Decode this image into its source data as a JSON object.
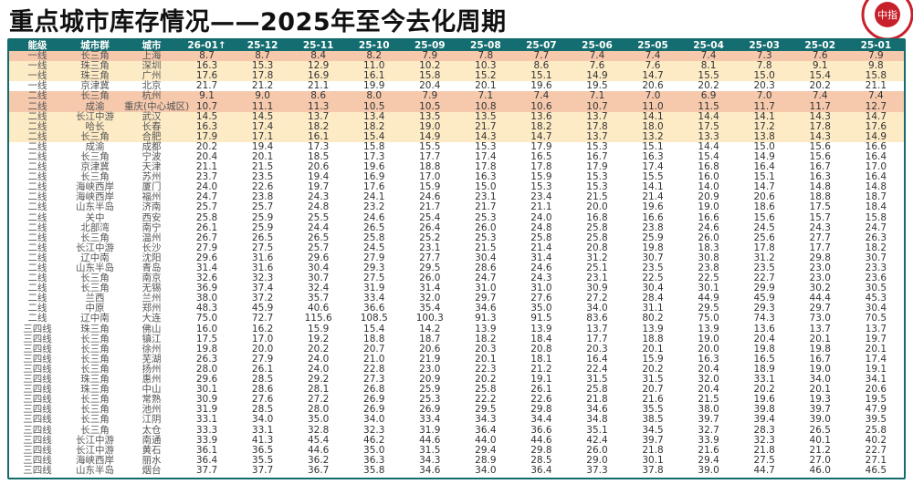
{
  "title": "重点城市库存情况——2025年至今去化周期",
  "logo": {
    "text": "中指",
    "ring_text": "CHINA INDEX",
    "color": "#c8202a"
  },
  "colors": {
    "header": "#146d70",
    "highlight_salmon": "#f6c9ad",
    "highlight_yellow": "#fdebc6"
  },
  "table": {
    "headers": [
      "能级",
      "城市群",
      "城市",
      "26-01↑",
      "25-12",
      "25-11",
      "25-10",
      "25-09",
      "25-08",
      "25-07",
      "25-06",
      "25-05",
      "25-04",
      "25-03",
      "25-02",
      "25-01"
    ],
    "rows": [
      {
        "hl": "salmon",
        "cells": [
          "一线",
          "长三角",
          "上海",
          "8.7",
          "8.7",
          "8.4",
          "8.2",
          "7.9",
          "7.8",
          "7.7",
          "7.4",
          "7.4",
          "7.4",
          "7.3",
          "7.6",
          "7.9"
        ]
      },
      {
        "hl": "yellow",
        "cells": [
          "一线",
          "珠三角",
          "深圳",
          "16.3",
          "15.3",
          "12.9",
          "11.0",
          "10.2",
          "10.3",
          "8.6",
          "7.6",
          "7.6",
          "8.1",
          "7.8",
          "9.1",
          "9.8"
        ]
      },
      {
        "hl": "yellow",
        "cells": [
          "一线",
          "珠三角",
          "广州",
          "17.6",
          "17.8",
          "16.9",
          "16.1",
          "15.8",
          "15.2",
          "15.1",
          "14.9",
          "14.7",
          "15.5",
          "15.0",
          "15.4",
          "15.8"
        ]
      },
      {
        "hl": "white",
        "cells": [
          "一线",
          "京津冀",
          "北京",
          "21.7",
          "21.2",
          "21.1",
          "19.9",
          "20.4",
          "20.1",
          "19.6",
          "19.5",
          "20.6",
          "20.2",
          "20.3",
          "20.2",
          "21.1"
        ]
      },
      {
        "hl": "salmon",
        "cells": [
          "二线",
          "长三角",
          "杭州",
          "9.1",
          "9.0",
          "8.6",
          "8.0",
          "7.9",
          "7.1",
          "7.4",
          "7.1",
          "7.0",
          "6.9",
          "7.0",
          "7.4",
          "7.4"
        ]
      },
      {
        "hl": "salmon",
        "cells": [
          "二线",
          "成渝",
          "重庆(中心城区)",
          "10.7",
          "11.1",
          "11.3",
          "10.5",
          "10.5",
          "10.8",
          "10.6",
          "10.7",
          "11.0",
          "11.5",
          "11.7",
          "11.7",
          "12.7"
        ]
      },
      {
        "hl": "yellow",
        "cells": [
          "二线",
          "长江中游",
          "武汉",
          "14.5",
          "14.5",
          "13.7",
          "13.4",
          "13.5",
          "13.5",
          "13.6",
          "13.7",
          "14.1",
          "14.4",
          "14.1",
          "14.3",
          "14.7"
        ]
      },
      {
        "hl": "yellow",
        "cells": [
          "二线",
          "哈长",
          "长春",
          "16.3",
          "17.4",
          "18.2",
          "18.2",
          "19.0",
          "21.7",
          "18.2",
          "17.8",
          "18.0",
          "17.5",
          "17.2",
          "17.8",
          "17.6"
        ]
      },
      {
        "hl": "yellow",
        "cells": [
          "二线",
          "长三角",
          "合肥",
          "17.9",
          "17.1",
          "16.1",
          "15.4",
          "14.9",
          "14.3",
          "14.7",
          "13.7",
          "13.2",
          "13.3",
          "13.8",
          "14.3",
          "14.9"
        ]
      },
      {
        "hl": "white",
        "cells": [
          "二线",
          "成渝",
          "成都",
          "20.2",
          "19.4",
          "17.3",
          "15.8",
          "15.5",
          "15.3",
          "17.9",
          "15.3",
          "15.1",
          "14.4",
          "15.0",
          "15.6",
          "16.6"
        ]
      },
      {
        "hl": "white",
        "cells": [
          "二线",
          "长三角",
          "宁波",
          "20.4",
          "20.1",
          "18.5",
          "17.3",
          "17.7",
          "17.4",
          "16.5",
          "16.7",
          "16.3",
          "15.4",
          "14.9",
          "15.6",
          "16.4"
        ]
      },
      {
        "hl": "white",
        "cells": [
          "二线",
          "京津冀",
          "天津",
          "21.1",
          "21.5",
          "20.6",
          "19.6",
          "18.8",
          "17.8",
          "17.8",
          "17.9",
          "17.4",
          "16.8",
          "16.4",
          "16.7",
          "17.0"
        ]
      },
      {
        "hl": "white",
        "cells": [
          "二线",
          "长三角",
          "苏州",
          "23.7",
          "23.5",
          "19.4",
          "16.9",
          "17.0",
          "16.3",
          "15.9",
          "15.3",
          "15.5",
          "16.0",
          "15.1",
          "16.3",
          "16.4"
        ]
      },
      {
        "hl": "white",
        "cells": [
          "二线",
          "海峡西岸",
          "厦门",
          "24.0",
          "22.6",
          "19.7",
          "17.6",
          "15.9",
          "15.0",
          "15.3",
          "15.3",
          "14.1",
          "14.0",
          "14.7",
          "14.8",
          "14.8"
        ]
      },
      {
        "hl": "white",
        "cells": [
          "二线",
          "海峡西岸",
          "福州",
          "24.7",
          "23.8",
          "24.3",
          "24.1",
          "24.6",
          "23.1",
          "23.4",
          "21.5",
          "21.4",
          "20.9",
          "20.6",
          "18.8",
          "18.7"
        ]
      },
      {
        "hl": "white",
        "cells": [
          "二线",
          "山东半岛",
          "济南",
          "25.7",
          "25.7",
          "24.8",
          "23.2",
          "21.7",
          "21.7",
          "21.1",
          "20.0",
          "19.6",
          "19.0",
          "18.6",
          "17.5",
          "18.4"
        ]
      },
      {
        "hl": "white",
        "cells": [
          "二线",
          "关中",
          "西安",
          "25.8",
          "25.9",
          "25.5",
          "24.6",
          "25.4",
          "25.3",
          "24.0",
          "16.8",
          "16.6",
          "16.6",
          "15.6",
          "15.7",
          "15.8"
        ]
      },
      {
        "hl": "white",
        "cells": [
          "二线",
          "北部湾",
          "南宁",
          "26.1",
          "25.9",
          "24.4",
          "26.5",
          "26.4",
          "26.0",
          "24.8",
          "25.8",
          "23.8",
          "24.6",
          "24.5",
          "24.3",
          "24.7"
        ]
      },
      {
        "hl": "white",
        "cells": [
          "二线",
          "长三角",
          "温州",
          "26.7",
          "26.5",
          "26.5",
          "25.8",
          "25.2",
          "25.3",
          "25.8",
          "25.8",
          "25.9",
          "26.0",
          "25.6",
          "27.7",
          "26.3"
        ]
      },
      {
        "hl": "white",
        "cells": [
          "二线",
          "长江中游",
          "长沙",
          "27.9",
          "27.5",
          "25.7",
          "24.5",
          "23.1",
          "21.5",
          "21.4",
          "20.8",
          "19.8",
          "18.3",
          "17.8",
          "17.7",
          "18.2"
        ]
      },
      {
        "hl": "white",
        "cells": [
          "二线",
          "辽中南",
          "沈阳",
          "29.6",
          "31.6",
          "29.6",
          "27.9",
          "27.7",
          "30.4",
          "31.4",
          "31.2",
          "30.7",
          "30.8",
          "31.2",
          "29.8",
          "30.7"
        ]
      },
      {
        "hl": "white",
        "cells": [
          "二线",
          "山东半岛",
          "青岛",
          "31.4",
          "31.6",
          "30.4",
          "29.3",
          "29.5",
          "28.6",
          "24.6",
          "25.1",
          "23.5",
          "23.8",
          "23.5",
          "23.0",
          "23.3"
        ]
      },
      {
        "hl": "white",
        "cells": [
          "二线",
          "长三角",
          "南京",
          "32.6",
          "32.3",
          "30.7",
          "27.5",
          "26.0",
          "24.7",
          "24.3",
          "23.1",
          "22.5",
          "22.5",
          "22.7",
          "23.0",
          "23.6"
        ]
      },
      {
        "hl": "white",
        "cells": [
          "二线",
          "长三角",
          "无锡",
          "36.9",
          "37.4",
          "32.4",
          "31.9",
          "31.4",
          "31.0",
          "31.0",
          "30.9",
          "30.4",
          "30.1",
          "29.9",
          "30.2",
          "30.5"
        ]
      },
      {
        "hl": "white",
        "cells": [
          "二线",
          "兰西",
          "兰州",
          "38.0",
          "37.2",
          "35.7",
          "33.4",
          "32.0",
          "29.7",
          "27.6",
          "27.2",
          "28.4",
          "44.9",
          "45.9",
          "44.4",
          "45.3"
        ]
      },
      {
        "hl": "white",
        "cells": [
          "二线",
          "中原",
          "郑州",
          "48.3",
          "45.9",
          "40.6",
          "36.6",
          "35.4",
          "34.6",
          "35.0",
          "34.0",
          "31.1",
          "29.5",
          "29.3",
          "29.7",
          "30.4"
        ]
      },
      {
        "hl": "white",
        "cells": [
          "二线",
          "辽中南",
          "大连",
          "75.0",
          "72.7",
          "115.6",
          "108.5",
          "100.3",
          "91.3",
          "91.5",
          "83.6",
          "80.2",
          "75.0",
          "74.3",
          "73.0",
          "70.5"
        ]
      },
      {
        "hl": "white",
        "cells": [
          "三四线",
          "珠三角",
          "佛山",
          "16.0",
          "16.2",
          "15.9",
          "15.4",
          "14.2",
          "13.9",
          "13.9",
          "13.7",
          "13.9",
          "13.9",
          "13.6",
          "13.7",
          "13.7"
        ]
      },
      {
        "hl": "white",
        "cells": [
          "三四线",
          "长三角",
          "镇江",
          "17.5",
          "17.0",
          "19.2",
          "18.8",
          "18.7",
          "18.2",
          "18.4",
          "17.7",
          "18.8",
          "19.0",
          "20.4",
          "20.1",
          "19.7"
        ]
      },
      {
        "hl": "white",
        "cells": [
          "三四线",
          "长三角",
          "徐州",
          "19.8",
          "20.0",
          "20.2",
          "20.7",
          "20.6",
          "20.3",
          "20.8",
          "20.3",
          "20.1",
          "20.0",
          "19.8",
          "19.8",
          "20.1"
        ]
      },
      {
        "hl": "white",
        "cells": [
          "三四线",
          "长三角",
          "芜湖",
          "26.3",
          "27.9",
          "24.0",
          "21.0",
          "21.9",
          "20.1",
          "18.1",
          "16.4",
          "15.9",
          "16.3",
          "16.5",
          "16.7",
          "17.4"
        ]
      },
      {
        "hl": "white",
        "cells": [
          "三四线",
          "长三角",
          "扬州",
          "28.0",
          "26.1",
          "24.0",
          "22.8",
          "23.0",
          "22.3",
          "21.2",
          "22.4",
          "20.2",
          "20.4",
          "18.9",
          "19.0",
          "19.1"
        ]
      },
      {
        "hl": "white",
        "cells": [
          "三四线",
          "珠三角",
          "惠州",
          "29.6",
          "28.5",
          "29.2",
          "27.3",
          "20.9",
          "20.2",
          "19.1",
          "31.5",
          "31.5",
          "32.0",
          "33.1",
          "34.0",
          "34.1"
        ]
      },
      {
        "hl": "white",
        "cells": [
          "三四线",
          "珠三角",
          "中山",
          "30.1",
          "28.6",
          "28.1",
          "26.8",
          "25.9",
          "25.8",
          "26.1",
          "25.8",
          "20.7",
          "20.4",
          "20.2",
          "20.1",
          "20.6"
        ]
      },
      {
        "hl": "white",
        "cells": [
          "三四线",
          "长三角",
          "常熟",
          "30.9",
          "27.6",
          "27.2",
          "26.9",
          "25.3",
          "22.2",
          "22.6",
          "21.8",
          "21.6",
          "21.5",
          "19.6",
          "19.3",
          "19.5"
        ]
      },
      {
        "hl": "white",
        "cells": [
          "三四线",
          "长三角",
          "池州",
          "31.9",
          "28.5",
          "28.0",
          "26.9",
          "26.9",
          "29.5",
          "29.8",
          "34.6",
          "35.5",
          "38.0",
          "39.8",
          "39.7",
          "47.9"
        ]
      },
      {
        "hl": "white",
        "cells": [
          "三四线",
          "长三角",
          "江阴",
          "33.1",
          "34.0",
          "35.0",
          "34.0",
          "33.4",
          "34.3",
          "34.4",
          "34.8",
          "38.5",
          "39.7",
          "39.4",
          "39.0",
          "39.5"
        ]
      },
      {
        "hl": "white",
        "cells": [
          "三四线",
          "长三角",
          "太仓",
          "33.3",
          "33.1",
          "32.8",
          "32.3",
          "31.9",
          "36.4",
          "36.6",
          "35.1",
          "34.5",
          "32.7",
          "28.3",
          "26.5",
          "25.8"
        ]
      },
      {
        "hl": "white",
        "cells": [
          "三四线",
          "长江中游",
          "南通",
          "33.9",
          "41.3",
          "45.4",
          "46.2",
          "44.6",
          "44.0",
          "44.6",
          "42.4",
          "39.7",
          "33.9",
          "32.3",
          "40.1",
          "40.2"
        ]
      },
      {
        "hl": "white",
        "cells": [
          "三四线",
          "长江中游",
          "黄石",
          "36.1",
          "36.5",
          "44.6",
          "35.0",
          "31.5",
          "29.4",
          "29.8",
          "26.0",
          "21.8",
          "21.6",
          "21.8",
          "21.2",
          "22.7"
        ]
      },
      {
        "hl": "white",
        "cells": [
          "三四线",
          "海峡西岸",
          "丽水",
          "36.4",
          "35.5",
          "36.2",
          "36.3",
          "34.3",
          "28.9",
          "28.5",
          "29.0",
          "30.1",
          "29.4",
          "27.5",
          "27.0",
          "27.1"
        ]
      },
      {
        "hl": "white",
        "cells": [
          "三四线",
          "山东半岛",
          "烟台",
          "37.7",
          "37.7",
          "36.7",
          "35.8",
          "34.6",
          "34.0",
          "36.4",
          "37.3",
          "37.8",
          "39.0",
          "44.7",
          "46.0",
          "46.5"
        ]
      }
    ]
  }
}
